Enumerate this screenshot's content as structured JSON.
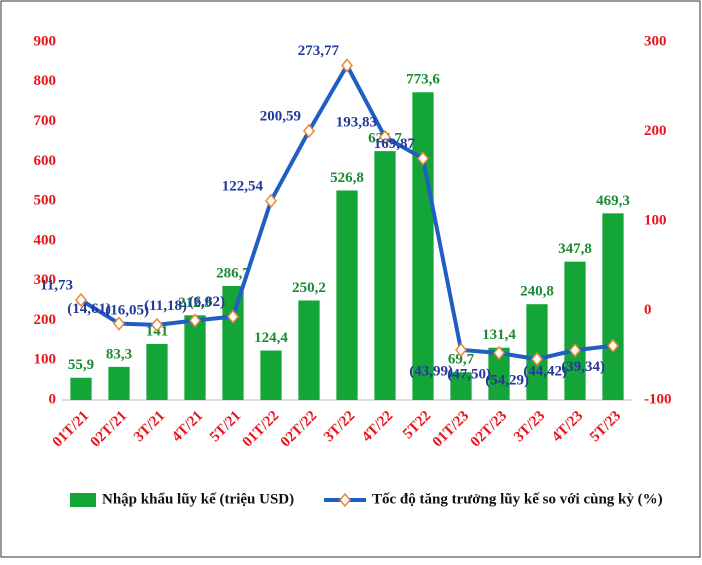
{
  "chart_data": {
    "type": "bar",
    "categories": [
      "01T/21",
      "02T/21",
      "3T/21",
      "4T/21",
      "5T/21",
      "01T/22",
      "02T/22",
      "3T/22",
      "4T/22",
      "5T22",
      "01T/23",
      "02T/23",
      "3T/23",
      "4T/23",
      "5T/23"
    ],
    "series": [
      {
        "name": "Nhập khẩu lũy kế (triệu USD)",
        "type": "bar",
        "color": "#13a538",
        "values": [
          55.9,
          83.3,
          141,
          212.9,
          286.7,
          124.4,
          250.2,
          526.8,
          625.7,
          773.6,
          69.7,
          131.4,
          240.8,
          347.8,
          469.3
        ],
        "value_labels": [
          "55,9",
          "83,3",
          "141",
          "212,9",
          "286,7",
          "124,4",
          "250,2",
          "526,8",
          "625,7",
          "773,6",
          "69,7",
          "131,4",
          "240,8",
          "347,8",
          "469,3"
        ]
      },
      {
        "name": "Tốc độ tăng trưởng lũy kế so với cùng kỳ (%)",
        "type": "line",
        "axis": "y2",
        "color": "#1f5fc4",
        "values": [
          11.73,
          -14.61,
          -16.05,
          -11.18,
          -6.82,
          122.54,
          200.59,
          273.77,
          193.83,
          169.87,
          -43.99,
          -47.5,
          -54.29,
          -44.42,
          -39.34
        ],
        "value_labels": [
          "11,73",
          "(14,61)",
          "(16,05)",
          "(11,18)",
          "(6,82)",
          "122,54",
          "200,59",
          "273,77",
          "193,83",
          "169,87",
          "(43,99)",
          "(47,50)",
          "(54,29)",
          "(44,42)",
          "(39,34)"
        ]
      }
    ],
    "ylim": [
      0,
      900
    ],
    "yticks": [
      0,
      100,
      200,
      300,
      400,
      500,
      600,
      700,
      800,
      900
    ],
    "y2lim": [
      -100,
      300
    ],
    "y2ticks": [
      -100,
      0,
      100,
      200,
      300
    ],
    "grid": false,
    "legend": "bottom"
  }
}
